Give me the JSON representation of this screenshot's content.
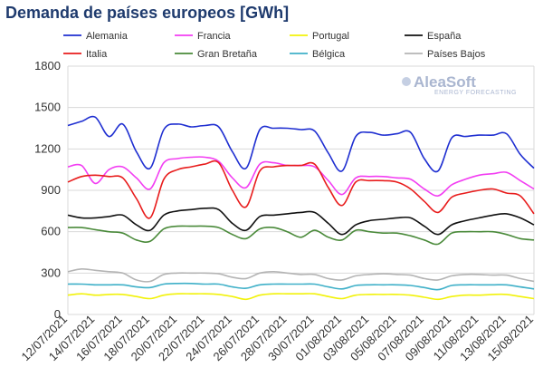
{
  "chart_data": {
    "type": "line",
    "title": "Demanda de países europeos [GWh]",
    "ylim": [
      0,
      1800
    ],
    "yticks": [
      0,
      300,
      600,
      900,
      1200,
      1500,
      1800
    ],
    "xticks": [
      "12/07/2021",
      "14/07/2021",
      "16/07/2021",
      "18/07/2021",
      "20/07/2021",
      "22/07/2021",
      "24/07/2021",
      "26/07/2021",
      "28/07/2021",
      "30/07/2021",
      "01/08/2021",
      "03/08/2021",
      "05/08/2021",
      "07/08/2021",
      "09/08/2021",
      "11/08/2021",
      "13/08/2021",
      "15/08/2021"
    ],
    "x": [
      "12/07",
      "13/07",
      "14/07",
      "15/07",
      "16/07",
      "17/07",
      "18/07",
      "19/07",
      "20/07",
      "21/07",
      "22/07",
      "23/07",
      "24/07",
      "25/07",
      "26/07",
      "27/07",
      "28/07",
      "29/07",
      "30/07",
      "31/07",
      "01/08",
      "02/08",
      "03/08",
      "04/08",
      "05/08",
      "06/08",
      "07/08",
      "08/08",
      "09/08",
      "10/08",
      "11/08",
      "12/08",
      "13/08",
      "14/08",
      "15/08"
    ],
    "grid": true,
    "legend_position": "top",
    "series": [
      {
        "name": "Alemania",
        "color": "#1f2fd1",
        "values": [
          1370,
          1400,
          1430,
          1290,
          1380,
          1180,
          1060,
          1340,
          1380,
          1360,
          1370,
          1360,
          1180,
          1060,
          1340,
          1350,
          1350,
          1340,
          1330,
          1170,
          1040,
          1290,
          1320,
          1300,
          1310,
          1320,
          1130,
          1040,
          1280,
          1290,
          1300,
          1300,
          1310,
          1160,
          1060
        ]
      },
      {
        "name": "Francia",
        "color": "#f23ef2",
        "values": [
          1070,
          1080,
          950,
          1050,
          1070,
          990,
          910,
          1100,
          1130,
          1140,
          1140,
          1110,
          990,
          920,
          1090,
          1100,
          1080,
          1080,
          1070,
          970,
          870,
          990,
          1000,
          1000,
          990,
          980,
          910,
          860,
          940,
          980,
          1010,
          1020,
          1030,
          970,
          910
        ]
      },
      {
        "name": "Portugal",
        "color": "#f2f20a",
        "values": [
          140,
          150,
          140,
          145,
          145,
          130,
          115,
          140,
          150,
          150,
          150,
          145,
          130,
          110,
          140,
          150,
          150,
          150,
          150,
          130,
          115,
          140,
          145,
          145,
          145,
          140,
          125,
          110,
          130,
          140,
          140,
          145,
          145,
          130,
          115
        ]
      },
      {
        "name": "España",
        "color": "#111111",
        "values": [
          720,
          700,
          700,
          710,
          720,
          650,
          610,
          720,
          750,
          760,
          770,
          760,
          660,
          610,
          710,
          720,
          730,
          740,
          740,
          660,
          580,
          650,
          680,
          690,
          700,
          700,
          640,
          580,
          650,
          680,
          700,
          720,
          730,
          700,
          650
        ]
      },
      {
        "name": "Italia",
        "color": "#e81c1c",
        "values": [
          960,
          1000,
          1010,
          1000,
          990,
          840,
          700,
          980,
          1050,
          1070,
          1090,
          1100,
          900,
          780,
          1040,
          1070,
          1080,
          1080,
          1090,
          920,
          790,
          960,
          970,
          970,
          960,
          910,
          820,
          740,
          850,
          880,
          900,
          910,
          880,
          860,
          730
        ]
      },
      {
        "name": "Gran Bretaña",
        "color": "#4a8a3a",
        "values": [
          630,
          630,
          615,
          600,
          590,
          540,
          530,
          620,
          640,
          640,
          640,
          630,
          580,
          550,
          620,
          630,
          600,
          560,
          610,
          560,
          540,
          610,
          600,
          590,
          590,
          570,
          540,
          510,
          590,
          600,
          600,
          600,
          580,
          550,
          540
        ]
      },
      {
        "name": "Bélgica",
        "color": "#3fb0c8",
        "values": [
          220,
          220,
          215,
          215,
          215,
          200,
          195,
          220,
          225,
          225,
          220,
          220,
          200,
          190,
          215,
          220,
          220,
          220,
          220,
          200,
          185,
          210,
          215,
          215,
          215,
          210,
          195,
          180,
          210,
          215,
          215,
          215,
          215,
          200,
          185
        ]
      },
      {
        "name": "Países Bajos",
        "color": "#b4b4b4",
        "values": [
          310,
          330,
          320,
          310,
          300,
          250,
          240,
          290,
          300,
          300,
          300,
          295,
          270,
          260,
          300,
          310,
          300,
          290,
          290,
          260,
          250,
          280,
          290,
          295,
          290,
          285,
          260,
          250,
          280,
          290,
          290,
          285,
          285,
          260,
          240
        ]
      }
    ]
  },
  "watermark": {
    "main": "AleaSoft",
    "sub": "ENERGY FORECASTING"
  }
}
